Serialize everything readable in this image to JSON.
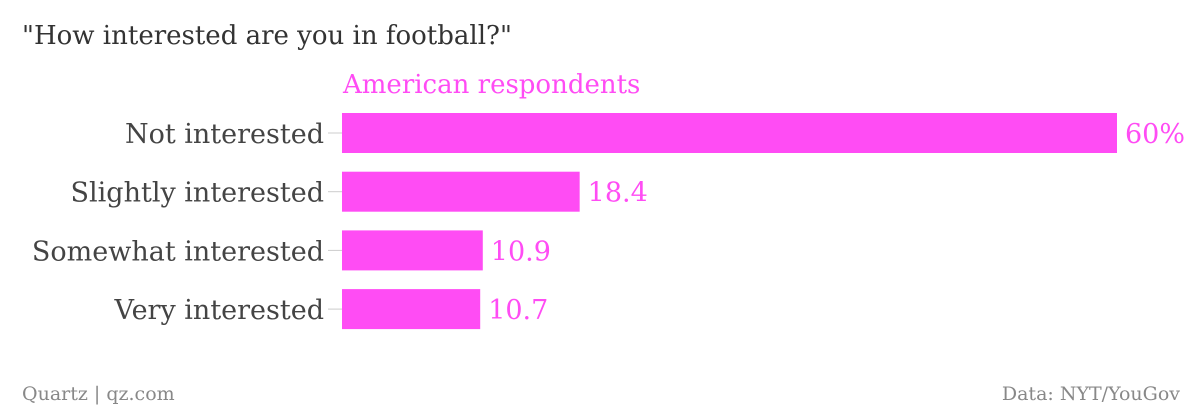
{
  "chart_data": {
    "type": "bar",
    "orientation": "horizontal",
    "title": "\"How interested are you in football?\"",
    "series": [
      {
        "name": "American respondents",
        "color": "#ff4cf4",
        "values": [
          60,
          18.4,
          10.9,
          10.7
        ],
        "value_labels": [
          "60%",
          "18.4",
          "10.9",
          "10.7"
        ]
      }
    ],
    "categories": [
      "Not interested",
      "Slightly interested",
      "Somewhat interested",
      "Very interested"
    ],
    "xlim": [
      0,
      60
    ],
    "grid": false,
    "legend": "none"
  },
  "footer": {
    "source_left": "Quartz | qz.com",
    "source_right": "Data: NYT/YouGov"
  }
}
